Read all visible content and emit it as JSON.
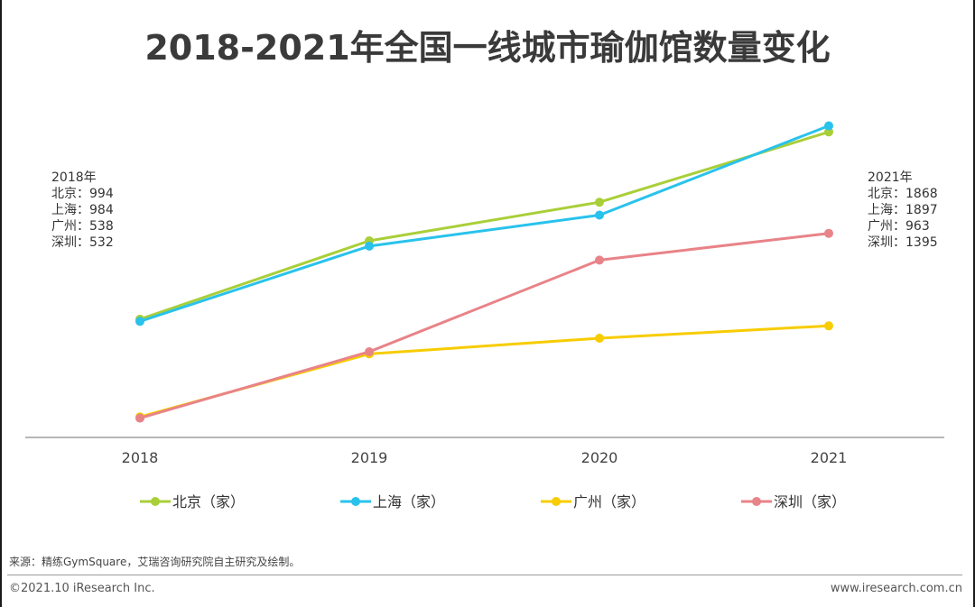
{
  "title": "2018-2021年全国一线城市瑜伽馆数量变化",
  "annotations": {
    "left": {
      "year": "2018年",
      "lines": [
        "北京：994",
        "上海：984",
        "广州：538",
        "深圳：532"
      ]
    },
    "right": {
      "year": "2021年",
      "lines": [
        "北京：1868",
        "上海：1897",
        "广州：963",
        "深圳：1395"
      ]
    }
  },
  "chart_data": {
    "type": "line",
    "title": "2018-2021年全国一线城市瑜伽馆数量变化",
    "x": [
      "2018",
      "2019",
      "2020",
      "2021"
    ],
    "xlabel": "",
    "ylabel": "",
    "ylim": [
      442,
      2000
    ],
    "grid": false,
    "legend_position": "bottom",
    "series": [
      {
        "name": "北京（家）",
        "color": "#a9cf38",
        "values": [
          994,
          1360,
          1540,
          1868
        ]
      },
      {
        "name": "上海（家）",
        "color": "#29c2ec",
        "values": [
          984,
          1335,
          1480,
          1897
        ]
      },
      {
        "name": "广州（家）",
        "color": "#f7cc00",
        "values": [
          538,
          832,
          905,
          963
        ]
      },
      {
        "name": "深圳（家）",
        "color": "#e88388",
        "values": [
          532,
          842,
          1270,
          1395
        ]
      }
    ]
  },
  "footer": {
    "source": "来源：精练GymSquare，艾瑞咨询研究院自主研究及绘制。",
    "copyright": "©2021.10 iResearch Inc.",
    "website": "www.iresearch.com.cn"
  }
}
